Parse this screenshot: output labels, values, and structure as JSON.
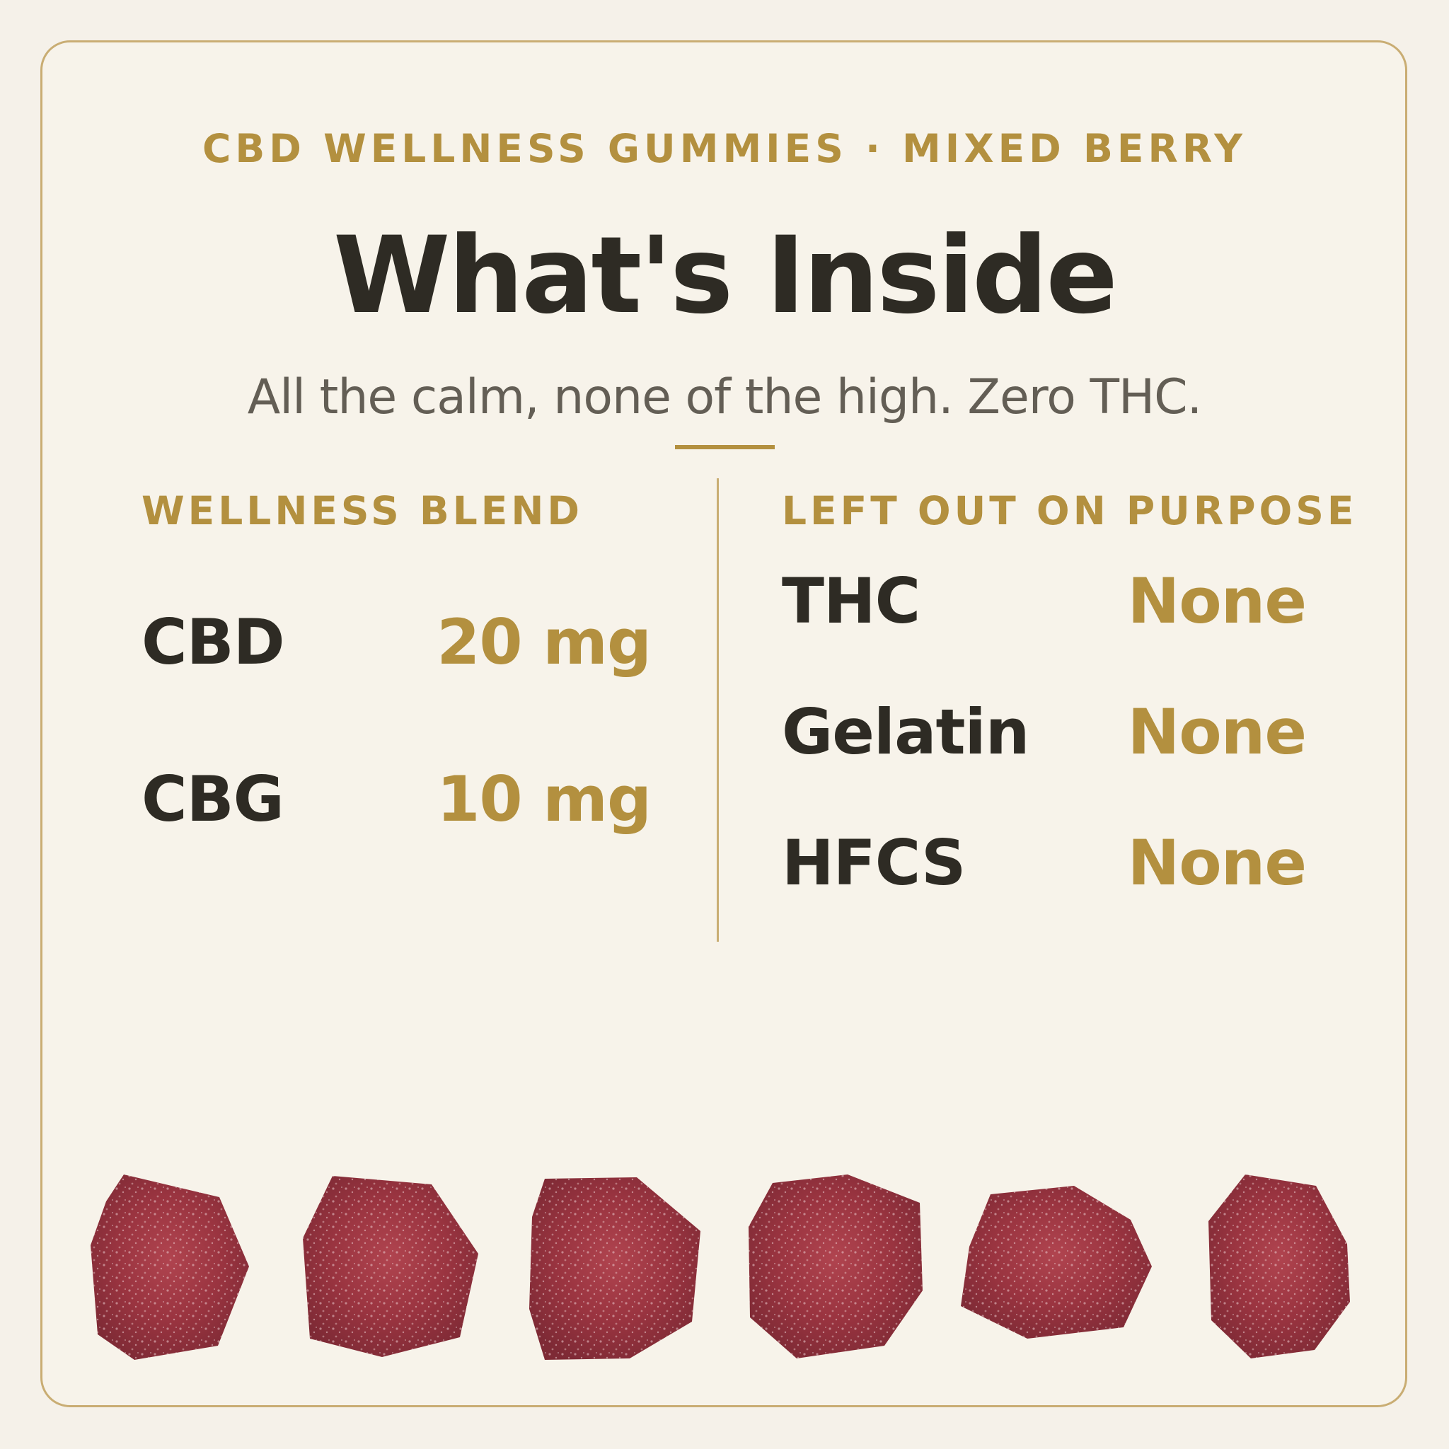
{
  "header": {
    "eyebrow": "CBD WELLNESS GUMMIES · MIXED BERRY",
    "title": "What's Inside",
    "subtitle": "All the calm, none of the high. Zero THC."
  },
  "blend": {
    "heading": "WELLNESS BLEND",
    "items": [
      {
        "name": "CBD",
        "value": "20 mg"
      },
      {
        "name": "CBG",
        "value": "10 mg"
      }
    ]
  },
  "excluded": {
    "heading": "LEFT OUT ON PURPOSE",
    "items": [
      {
        "name": "THC",
        "value": "None"
      },
      {
        "name": "Gelatin",
        "value": "None"
      },
      {
        "name": "HFCS",
        "value": "None"
      }
    ]
  },
  "colors": {
    "background": "#f5f1e9",
    "accent_gold": "#b3903f",
    "text_dark": "#2e2b24",
    "text_muted": "#635e55",
    "gummy": "#9e3a44"
  }
}
